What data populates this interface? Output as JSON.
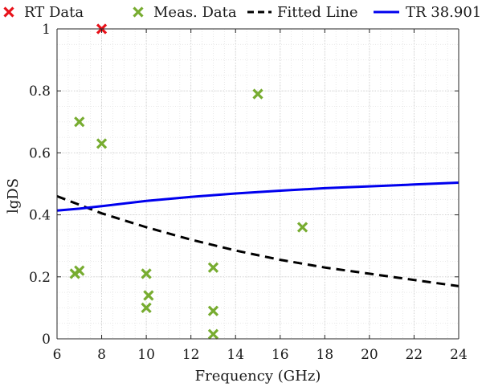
{
  "chart_data": {
    "type": "scatter",
    "xlabel": "Frequency (GHz)",
    "ylabel": "lgDS",
    "xlim": [
      6,
      24
    ],
    "ylim": [
      0,
      1
    ],
    "xticks": [
      6,
      8,
      10,
      12,
      14,
      16,
      18,
      20,
      22,
      24
    ],
    "yticks": [
      0,
      0.2,
      0.4,
      0.6,
      0.8,
      1
    ],
    "grid": true,
    "minor_grid": true,
    "legend_position": "top",
    "series": [
      {
        "name": "RT Data",
        "kind": "scatter",
        "marker": "x",
        "color": "#e8121a",
        "x": [
          8
        ],
        "y": [
          1.0
        ]
      },
      {
        "name": "Meas. Data",
        "kind": "scatter",
        "marker": "x",
        "color": "#77ac30",
        "x": [
          6.8,
          7.0,
          7.0,
          8.0,
          10.0,
          10.0,
          10.1,
          13.0,
          13.0,
          13.0,
          15.0,
          17.0
        ],
        "y": [
          0.21,
          0.22,
          0.7,
          0.63,
          0.21,
          0.1,
          0.14,
          0.23,
          0.09,
          0.015,
          0.79,
          0.36
        ]
      },
      {
        "name": "Fitted Line",
        "kind": "line",
        "dash": true,
        "color": "#000000",
        "x": [
          6,
          8,
          10,
          12,
          14,
          16,
          18,
          20,
          22,
          24
        ],
        "y": [
          0.46,
          0.405,
          0.36,
          0.32,
          0.285,
          0.255,
          0.23,
          0.21,
          0.19,
          0.17
        ]
      },
      {
        "name": "TR 38.901",
        "kind": "line",
        "dash": false,
        "color": "#0000ee",
        "x": [
          6,
          7,
          8,
          10,
          12,
          14,
          16,
          18,
          20,
          22,
          24
        ],
        "y": [
          0.414,
          0.42,
          0.428,
          0.445,
          0.458,
          0.469,
          0.478,
          0.486,
          0.492,
          0.498,
          0.504
        ]
      }
    ]
  }
}
